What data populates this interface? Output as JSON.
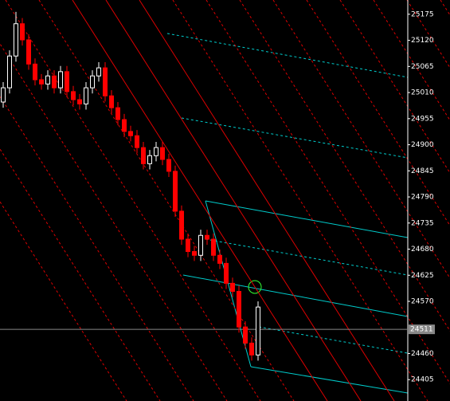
{
  "chart_data": {
    "type": "candlestick",
    "open": [
      24990,
      25020,
      25087,
      25155,
      25121,
      25070,
      25037,
      25028,
      25045,
      25020,
      25054,
      25012,
      24995,
      24986,
      25020,
      25045,
      25062,
      25003,
      24978,
      24953,
      24928,
      24919,
      24894,
      24860,
      24877,
      24894,
      24869,
      24844,
      24760,
      24701,
      24675,
      24667,
      24709,
      24701,
      24667,
      24650,
      24608,
      24591,
      24516,
      24482,
      24457
    ],
    "high": [
      25032,
      25099,
      25180,
      25167,
      25133,
      25082,
      25049,
      25057,
      25057,
      25066,
      25066,
      25024,
      25007,
      25032,
      25057,
      25074,
      25074,
      25015,
      24990,
      24965,
      24940,
      24931,
      24906,
      24889,
      24906,
      24906,
      24881,
      24856,
      24772,
      24713,
      24687,
      24721,
      24721,
      24713,
      24679,
      24662,
      24620,
      24603,
      24528,
      24494,
      24570
    ],
    "low": [
      24978,
      25008,
      25075,
      25109,
      25058,
      25025,
      25016,
      25016,
      25008,
      25008,
      25000,
      24983,
      24974,
      24974,
      25008,
      25033,
      24991,
      24966,
      24941,
      24916,
      24907,
      24882,
      24848,
      24848,
      24865,
      24857,
      24832,
      24748,
      24689,
      24663,
      24655,
      24655,
      24689,
      24655,
      24638,
      24596,
      24579,
      24504,
      24470,
      24445,
      24445
    ],
    "close": [
      25020,
      25087,
      25155,
      25121,
      25070,
      25037,
      25028,
      25045,
      25020,
      25054,
      25012,
      24995,
      24986,
      25020,
      25045,
      25062,
      25003,
      24978,
      24953,
      24928,
      24919,
      24894,
      24860,
      24877,
      24894,
      24869,
      24844,
      24760,
      24701,
      24675,
      24667,
      24709,
      24701,
      24667,
      24650,
      24608,
      24591,
      24516,
      24482,
      24457,
      24558
    ],
    "up_color": "#ffffff",
    "down_color": "#ff0000",
    "current_price": 24511,
    "ylim": [
      24360,
      25205
    ],
    "yticks": [
      24405,
      24460,
      24570,
      24625,
      24680,
      24735,
      24790,
      24845,
      24900,
      24955,
      25010,
      25065,
      25120,
      25175
    ]
  }
}
